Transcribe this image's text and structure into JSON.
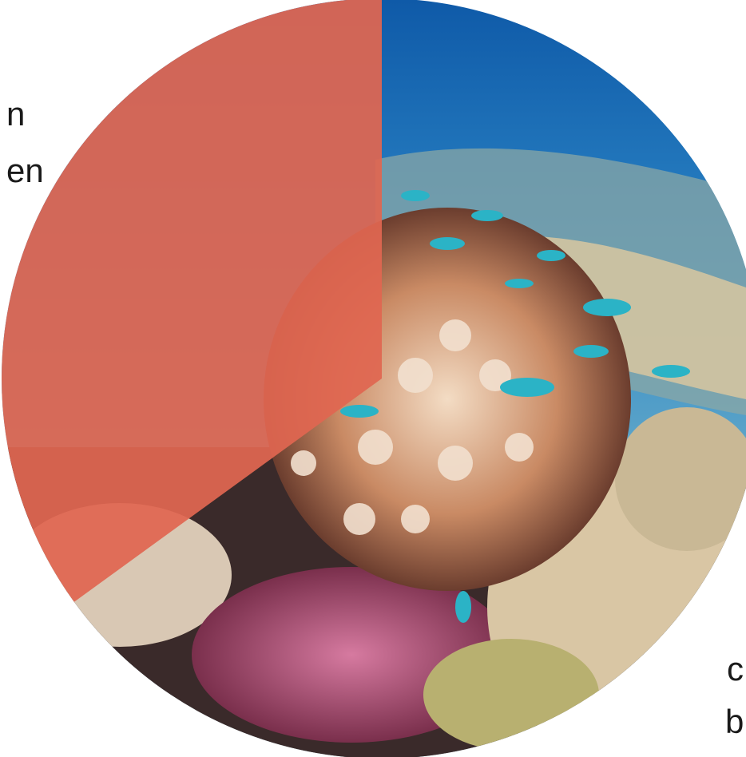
{
  "chart_data": {
    "type": "pie",
    "title": "",
    "background_image": "coral-reef-photo",
    "slices": [
      {
        "value": 35,
        "color": "#e06651",
        "fill": "solid-orange-overlay"
      },
      {
        "value": 65,
        "color": "#1f7fc0",
        "fill": "coral-reef-photo"
      }
    ],
    "start_angle_deg": 0,
    "direction": "counterclockwise"
  },
  "fragments": {
    "top_left_line1": "n",
    "top_left_line2": "en",
    "bottom_right_line1": "c",
    "bottom_right_line2": "b"
  },
  "colors": {
    "water_top": "#1565b0",
    "water_mid": "#2a7fc0",
    "coral_pink": "#e8b59a",
    "coral_cream": "#efd9bf",
    "reef_dark": "#4a2f2a",
    "fish": "#2ab0c4",
    "overlay": "#e06651"
  }
}
